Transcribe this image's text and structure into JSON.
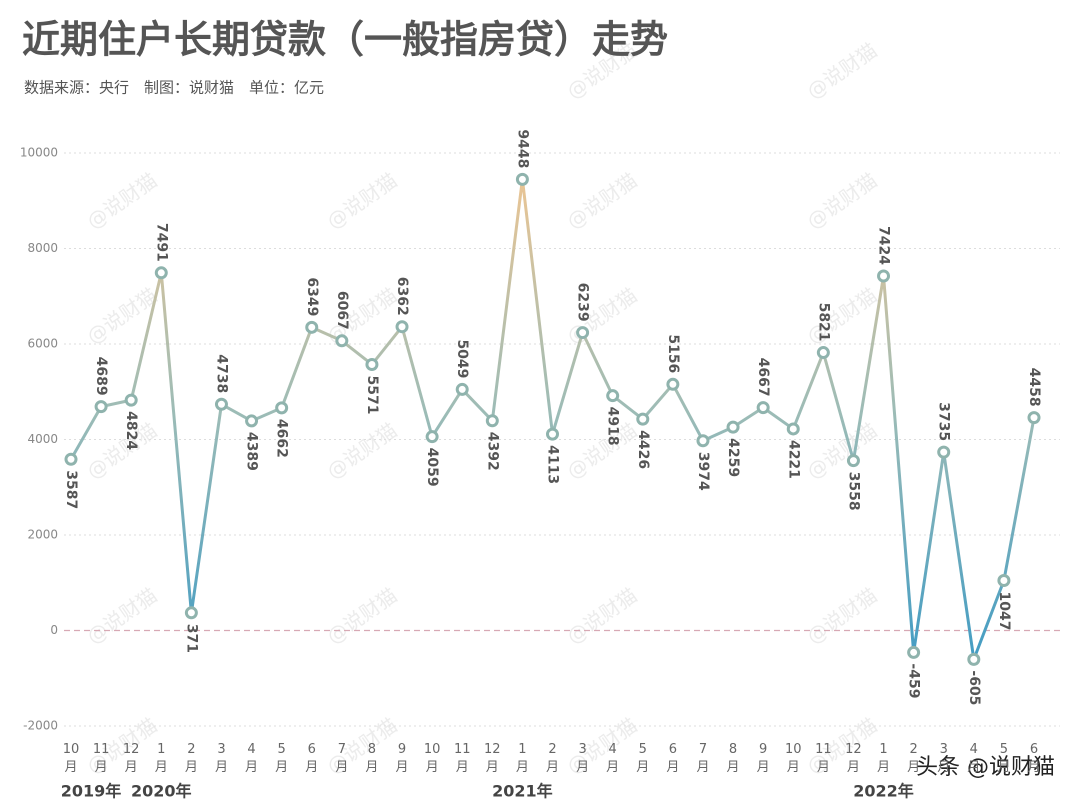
{
  "chart_data": {
    "type": "line",
    "title": "近期住户长期贷款（一般指房贷）走势",
    "subtitle": "数据来源：央行　制图：说财猫　单位：亿元",
    "watermark": "@说财猫",
    "corner_watermark": "头条 @说财猫",
    "categories": [
      "10月",
      "11月",
      "12月",
      "1月",
      "2月",
      "3月",
      "4月",
      "5月",
      "6月",
      "7月",
      "8月",
      "9月",
      "10月",
      "11月",
      "12月",
      "1月",
      "2月",
      "3月",
      "4月",
      "5月",
      "6月",
      "7月",
      "8月",
      "9月",
      "10月",
      "11月",
      "12月",
      "1月",
      "2月",
      "3月",
      "4月",
      "5月",
      "6月"
    ],
    "years": [
      "2019年",
      "2020年",
      "2021年",
      "2022年"
    ],
    "values": [
      3587,
      4689,
      4824,
      7491,
      371,
      4738,
      4389,
      4662,
      6349,
      6067,
      5571,
      6362,
      4059,
      5049,
      4392,
      9448,
      4113,
      6239,
      4918,
      4426,
      5156,
      3974,
      4259,
      4667,
      4221,
      5821,
      3558,
      7424,
      -459,
      3735,
      -605,
      1047,
      4458
    ],
    "ylim": [
      -2000,
      10000
    ],
    "yticks": [
      -2000,
      0,
      2000,
      4000,
      6000,
      8000,
      10000
    ],
    "grid": true,
    "colors": {
      "high": "#f3c690",
      "mid": "#9dbcb6",
      "low": "#3f9bc4",
      "marker": "#8fb3ad",
      "zero_line": "#d7a9b4"
    }
  }
}
